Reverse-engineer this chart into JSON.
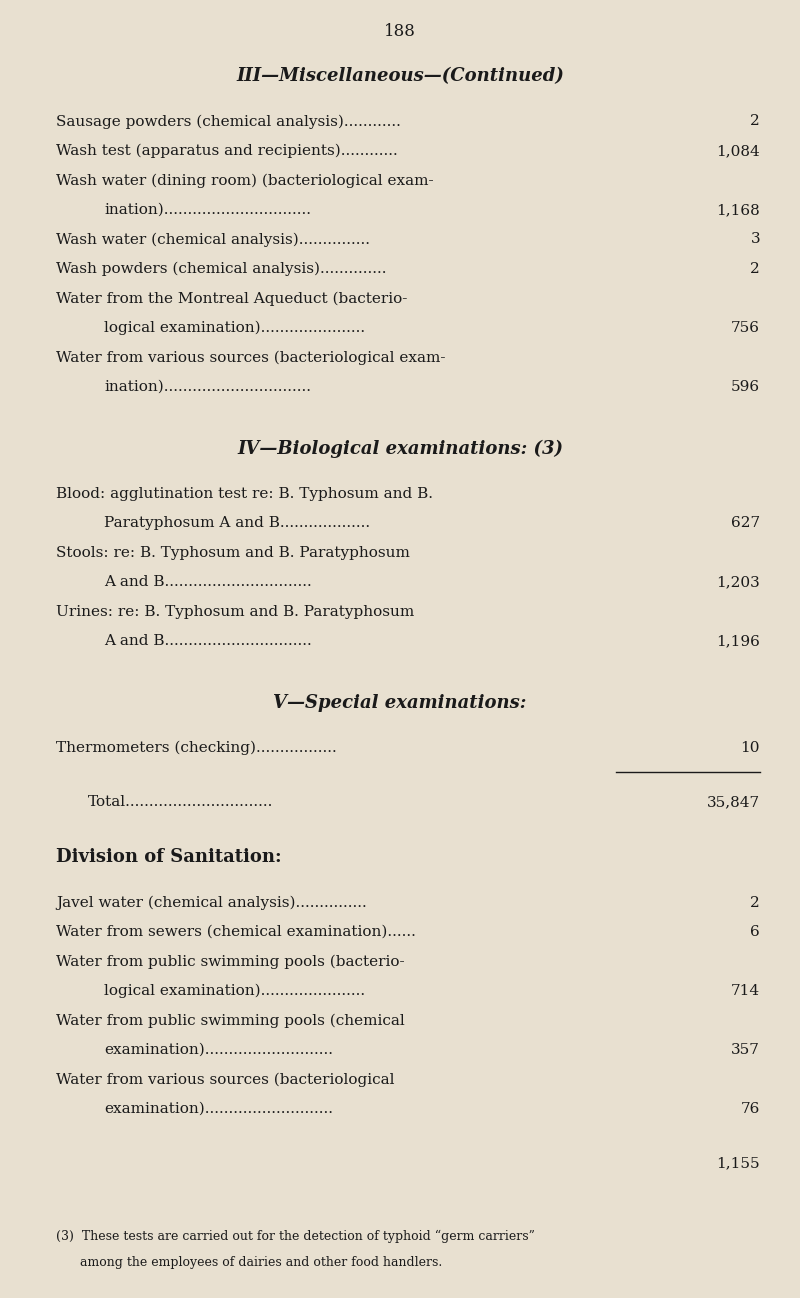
{
  "page_number": "188",
  "bg_color": "#e8e0d0",
  "text_color": "#1a1a1a",
  "page_width": 8.0,
  "page_height": 12.98,
  "section_III_title": "III—Miscellaneous—(Continued)",
  "section_III_items": [
    {
      "label": "Sausage powders (chemical analysis)............",
      "value": "2",
      "indent": 1
    },
    {
      "label": "Wash test (apparatus and recipients)............",
      "value": "1,084",
      "indent": 1
    },
    {
      "label": "Wash water (dining room) (bacteriological exam-",
      "value": "",
      "indent": 1
    },
    {
      "label": "ination)...............................",
      "value": "1,168",
      "indent": 2
    },
    {
      "label": "Wash water (chemical analysis)...............",
      "value": "3",
      "indent": 1
    },
    {
      "label": "Wash powders (chemical analysis)..............",
      "value": "2",
      "indent": 1
    },
    {
      "label": "Water from the Montreal Aqueduct (bacterio-",
      "value": "",
      "indent": 1
    },
    {
      "label": "logical examination)......................",
      "value": "756",
      "indent": 2
    },
    {
      "label": "Water from various sources (bacteriological exam-",
      "value": "",
      "indent": 1
    },
    {
      "label": "ination)...............................",
      "value": "596",
      "indent": 2
    }
  ],
  "section_IV_title": "IV—Biological examinations: (3)",
  "section_IV_items": [
    {
      "label": "Blood: agglutination test re: B. Typhosum and B.",
      "value": "",
      "indent": 1
    },
    {
      "label": "Paratyphosum A and B...................",
      "value": "627",
      "indent": 2
    },
    {
      "label": "Stools: re: B. Typhosum and B. Paratyphosum",
      "value": "",
      "indent": 1
    },
    {
      "label": "A and B...............................",
      "value": "1,203",
      "indent": 2
    },
    {
      "label": "Urines: re: B. Typhosum and B. Paratyphosum",
      "value": "",
      "indent": 1
    },
    {
      "label": "A and B...............................",
      "value": "1,196",
      "indent": 2
    }
  ],
  "section_V_title": "V—Special examinations:",
  "section_V_items": [
    {
      "label": "Thermometers (checking).................",
      "value": "10",
      "indent": 1
    }
  ],
  "total_label": "Total...............................",
  "total_value": "35,847",
  "section_DOS_title": "Division of Sanitation:",
  "section_DOS_items": [
    {
      "label": "Javel water (chemical analysis)...............",
      "value": "2",
      "indent": 1
    },
    {
      "label": "Water from sewers (chemical examination)......",
      "value": "6",
      "indent": 1
    },
    {
      "label": "Water from public swimming pools (bacterio-",
      "value": "",
      "indent": 1
    },
    {
      "label": "logical examination)......................",
      "value": "714",
      "indent": 2
    },
    {
      "label": "Water from public swimming pools (chemical",
      "value": "",
      "indent": 1
    },
    {
      "label": "examination)...........................",
      "value": "357",
      "indent": 2
    },
    {
      "label": "Water from various sources (bacteriological",
      "value": "",
      "indent": 1
    },
    {
      "label": "examination)...........................",
      "value": "76",
      "indent": 2
    }
  ],
  "dos_total_value": "1,155",
  "footnote": "(3)  These tests are carried out for the detection of typhoid “germ carriers”\n      among the employees of dairies and other food handlers."
}
